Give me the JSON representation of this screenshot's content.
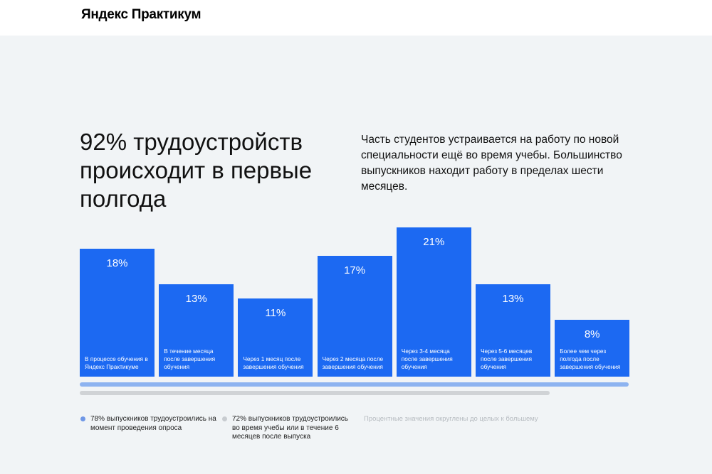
{
  "header": {
    "logo": "Яндекс Практикум"
  },
  "headline": "92% трудоустройств происходит в первые полгода",
  "description": "Часть студентов устраивается на работу по новой специальности ещё во время учебы. Большинство выпускников находит работу в пределах шести месяцев.",
  "chart_data": {
    "type": "bar",
    "unit": "%",
    "ylim": [
      0,
      21
    ],
    "categories": [
      "В процессе обучения в Яндекс Практикуме",
      "В течение месяца после завершения обучения",
      "Через 1 месяц после завершения обучения",
      "Через 2 месяца после завершения обучения",
      "Через 3-4 месяца после завершения обучения",
      "Через 5-6 месяцев после завершения обучения",
      "Более чем через полгода после завершения обучения"
    ],
    "values": [
      18,
      13,
      11,
      17,
      21,
      13,
      8
    ],
    "value_labels": [
      "18%",
      "13%",
      "11%",
      "17%",
      "21%",
      "13%",
      "8%"
    ],
    "bar_color": "#1c69f2",
    "ranges": [
      {
        "label": "78% выпускников трудоустроились на момент проведения опроса",
        "value": 78,
        "color": "#8db3f0"
      },
      {
        "label": "72% выпускников трудоустроились во время учебы или в течение 6 месяцев после выпуска",
        "value": 72,
        "color": "#d0d3d6"
      }
    ]
  },
  "legend": {
    "item1": "78% выпускников трудоустроились на момент проведения опроса",
    "item2": "72% выпускников трудоустроились во время учебы или в течение 6 месяцев после выпуска",
    "note": "Процентные значения округлены до целых к большему"
  }
}
